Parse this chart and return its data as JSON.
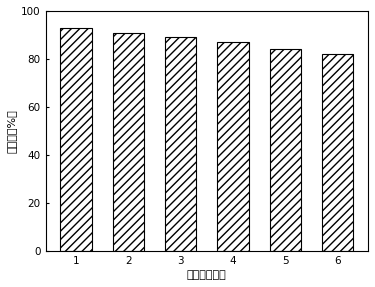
{
  "categories": [
    "1",
    "2",
    "3",
    "4",
    "5",
    "6"
  ],
  "values": [
    93,
    91,
    89,
    87,
    84,
    82
  ],
  "xlabel": "重夏利用次数",
  "ylabel": "降解率（%）",
  "ylim": [
    0,
    100
  ],
  "yticks": [
    0,
    20,
    40,
    60,
    80,
    100
  ],
  "bar_color": "#ffffff",
  "bar_edgecolor": "#000000",
  "hatch": "////",
  "background_color": "#ffffff",
  "bar_width": 0.6,
  "axis_fontsize": 8,
  "tick_fontsize": 7.5,
  "linewidth": 0.8
}
